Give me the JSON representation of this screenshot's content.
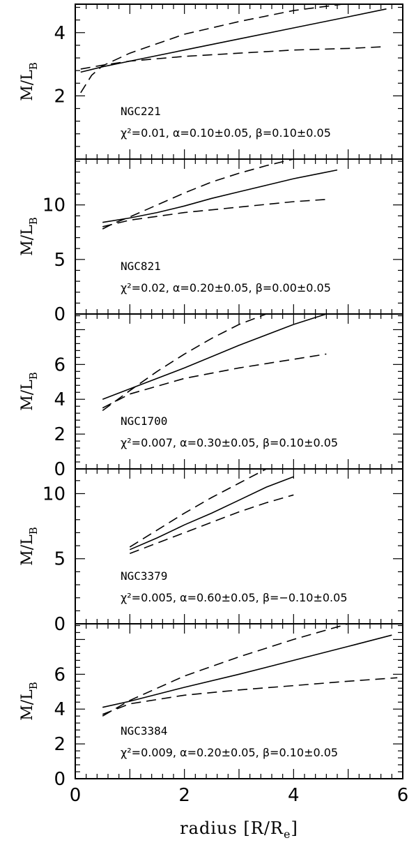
{
  "chart_data": [
    {
      "type": "line",
      "galaxy": "NGC221",
      "fit": "χ²=0.01,  α=0.10±0.05,  β=0.10±0.05",
      "ylabel": "M/L",
      "ylabel_sub": "B",
      "xlim": [
        0,
        6
      ],
      "ylim": [
        0,
        4.9
      ],
      "yticks": [
        2,
        4
      ],
      "yticklabels": [
        "2",
        "4"
      ],
      "series": [
        {
          "style": "solid",
          "x": [
            0.1,
            0.5,
            1,
            2,
            3,
            4,
            5,
            5.7
          ],
          "y": [
            2.75,
            2.92,
            3.1,
            3.45,
            3.8,
            4.15,
            4.5,
            4.75
          ]
        },
        {
          "style": "dashed",
          "x": [
            0.1,
            0.3,
            0.5,
            1,
            2,
            3,
            4,
            4.9
          ],
          "y": [
            2.1,
            2.65,
            2.95,
            3.35,
            3.95,
            4.35,
            4.7,
            4.9
          ]
        },
        {
          "style": "dashed",
          "x": [
            0.1,
            0.5,
            1,
            2,
            3,
            4,
            5,
            5.6
          ],
          "y": [
            2.85,
            2.97,
            3.1,
            3.25,
            3.35,
            3.45,
            3.5,
            3.55
          ]
        }
      ]
    },
    {
      "type": "line",
      "galaxy": "NGC821",
      "fit": "χ²=0.02,  α=0.20±0.05,  β=0.00±0.05",
      "ylabel": "M/L",
      "ylabel_sub": "B",
      "xlim": [
        0,
        6
      ],
      "ylim": [
        0,
        14.2
      ],
      "yticks": [
        0,
        5,
        10
      ],
      "yticklabels": [
        "0",
        "5",
        "10"
      ],
      "series": [
        {
          "style": "solid",
          "x": [
            0.5,
            1,
            1.5,
            2,
            2.5,
            3,
            3.5,
            4,
            4.5,
            4.8
          ],
          "y": [
            8.4,
            8.8,
            9.3,
            9.9,
            10.6,
            11.2,
            11.8,
            12.4,
            12.9,
            13.2
          ]
        },
        {
          "style": "dashed",
          "x": [
            0.5,
            0.7,
            1,
            1.5,
            2,
            2.5,
            3,
            3.5,
            4
          ],
          "y": [
            7.8,
            8.3,
            8.9,
            10,
            11.1,
            12.1,
            12.9,
            13.6,
            14.2
          ]
        },
        {
          "style": "dashed",
          "x": [
            0.5,
            1,
            2,
            3,
            4,
            4.6
          ],
          "y": [
            8,
            8.6,
            9.3,
            9.8,
            10.3,
            10.5
          ]
        }
      ]
    },
    {
      "type": "line",
      "galaxy": "NGC1700",
      "fit": "χ²=0.007,  α=0.30±0.05,  β=0.10±0.05",
      "ylabel": "M/L",
      "ylabel_sub": "B",
      "xlim": [
        0,
        6
      ],
      "ylim": [
        0,
        8.9
      ],
      "yticks": [
        0,
        2,
        4,
        6
      ],
      "yticklabels": [
        "0",
        "2",
        "4",
        "6"
      ],
      "series": [
        {
          "style": "solid",
          "x": [
            0.5,
            1,
            2,
            3,
            4,
            4.6
          ],
          "y": [
            4.0,
            4.6,
            5.8,
            7.1,
            8.3,
            8.9
          ]
        },
        {
          "style": "dashed",
          "x": [
            0.5,
            1,
            1.5,
            2,
            2.5,
            3,
            3.5
          ],
          "y": [
            3.35,
            4.5,
            5.6,
            6.6,
            7.5,
            8.3,
            8.9
          ]
        },
        {
          "style": "dashed",
          "x": [
            0.5,
            1,
            2,
            3,
            4,
            4.6
          ],
          "y": [
            3.5,
            4.3,
            5.2,
            5.8,
            6.3,
            6.6
          ]
        }
      ]
    },
    {
      "type": "line",
      "galaxy": "NGC3379",
      "fit": "χ²=0.005,  α=0.60±0.05,  β=−0.10±0.05",
      "ylabel": "M/L",
      "ylabel_sub": "B",
      "xlim": [
        0,
        6
      ],
      "ylim": [
        0,
        11.9
      ],
      "yticks": [
        0,
        5,
        10
      ],
      "yticklabels": [
        "0",
        "5",
        "10"
      ],
      "series": [
        {
          "style": "solid",
          "x": [
            1,
            1.5,
            2,
            2.5,
            3,
            3.5,
            4
          ],
          "y": [
            5.7,
            6.6,
            7.6,
            8.5,
            9.5,
            10.5,
            11.3
          ]
        },
        {
          "style": "dashed",
          "x": [
            1,
            1.5,
            2,
            2.5,
            3,
            3.5
          ],
          "y": [
            5.9,
            7.2,
            8.5,
            9.7,
            10.8,
            11.9
          ]
        },
        {
          "style": "dashed",
          "x": [
            1,
            1.5,
            2,
            2.5,
            3,
            3.5,
            4
          ],
          "y": [
            5.4,
            6.2,
            7,
            7.8,
            8.6,
            9.3,
            9.9
          ]
        }
      ]
    },
    {
      "type": "line",
      "galaxy": "NGC3384",
      "fit": "χ²=0.009,  α=0.20±0.05,  β=0.10±0.05",
      "ylabel": "M/L",
      "ylabel_sub": "B",
      "xlabel": "radius [R/R",
      "xlabel_sub": "e",
      "xlabel_end": "]",
      "xlim": [
        0,
        6
      ],
      "ylim": [
        0,
        8.9
      ],
      "yticks": [
        0,
        2,
        4,
        6
      ],
      "yticklabels": [
        "0",
        "2",
        "4",
        "6"
      ],
      "xticks": [
        0,
        2,
        4,
        6
      ],
      "xticklabels": [
        "0",
        "2",
        "4",
        "6"
      ],
      "series": [
        {
          "style": "solid",
          "x": [
            0.5,
            1,
            2,
            3,
            4,
            5,
            5.8
          ],
          "y": [
            4.1,
            4.45,
            5.25,
            6.0,
            6.8,
            7.6,
            8.25
          ]
        },
        {
          "style": "dashed",
          "x": [
            0.5,
            1,
            1.5,
            2,
            3,
            4,
            5
          ],
          "y": [
            3.6,
            4.5,
            5.2,
            5.9,
            7.0,
            8.0,
            8.9
          ]
        },
        {
          "style": "dashed",
          "x": [
            0.5,
            1,
            2,
            3,
            4,
            5,
            5.9
          ],
          "y": [
            3.7,
            4.3,
            4.8,
            5.1,
            5.35,
            5.6,
            5.8
          ]
        }
      ]
    }
  ]
}
